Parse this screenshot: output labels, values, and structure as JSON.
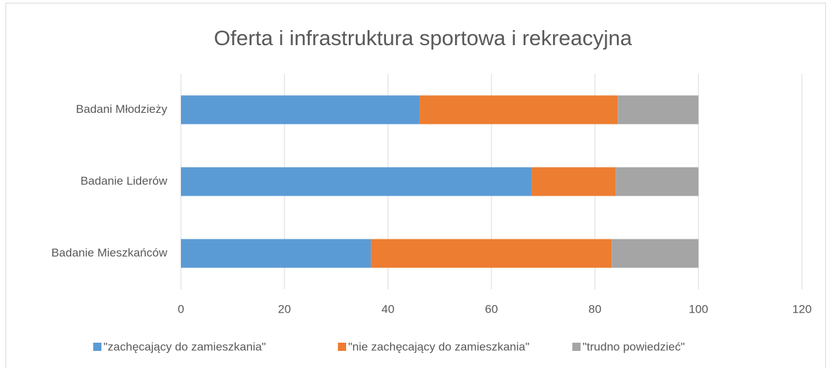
{
  "chart_data": {
    "type": "stacked_bar_horizontal",
    "title": "Oferta i infrastruktura sportowa i rekreacyjna",
    "categories": [
      "Badani Młodzieży",
      "Badanie Liderów",
      "Badanie Mieszkańców"
    ],
    "series": [
      {
        "name": "\"zachęcający do zamieszkania\"",
        "color": "#5b9bd5",
        "values": [
          46.1,
          67.8,
          36.7
        ]
      },
      {
        "name": "\"nie zachęcający do zamieszkania\"",
        "color": "#ed7d31",
        "values": [
          38.3,
          16.2,
          46.5
        ]
      },
      {
        "name": "\"trudno powiedzieć\"",
        "color": "#a5a5a5",
        "values": [
          15.6,
          16.0,
          16.8
        ]
      }
    ],
    "xlim": [
      0,
      120
    ],
    "xticks": [
      0,
      20,
      40,
      60,
      80,
      100,
      120
    ],
    "grid": true,
    "legend": "bottom"
  }
}
